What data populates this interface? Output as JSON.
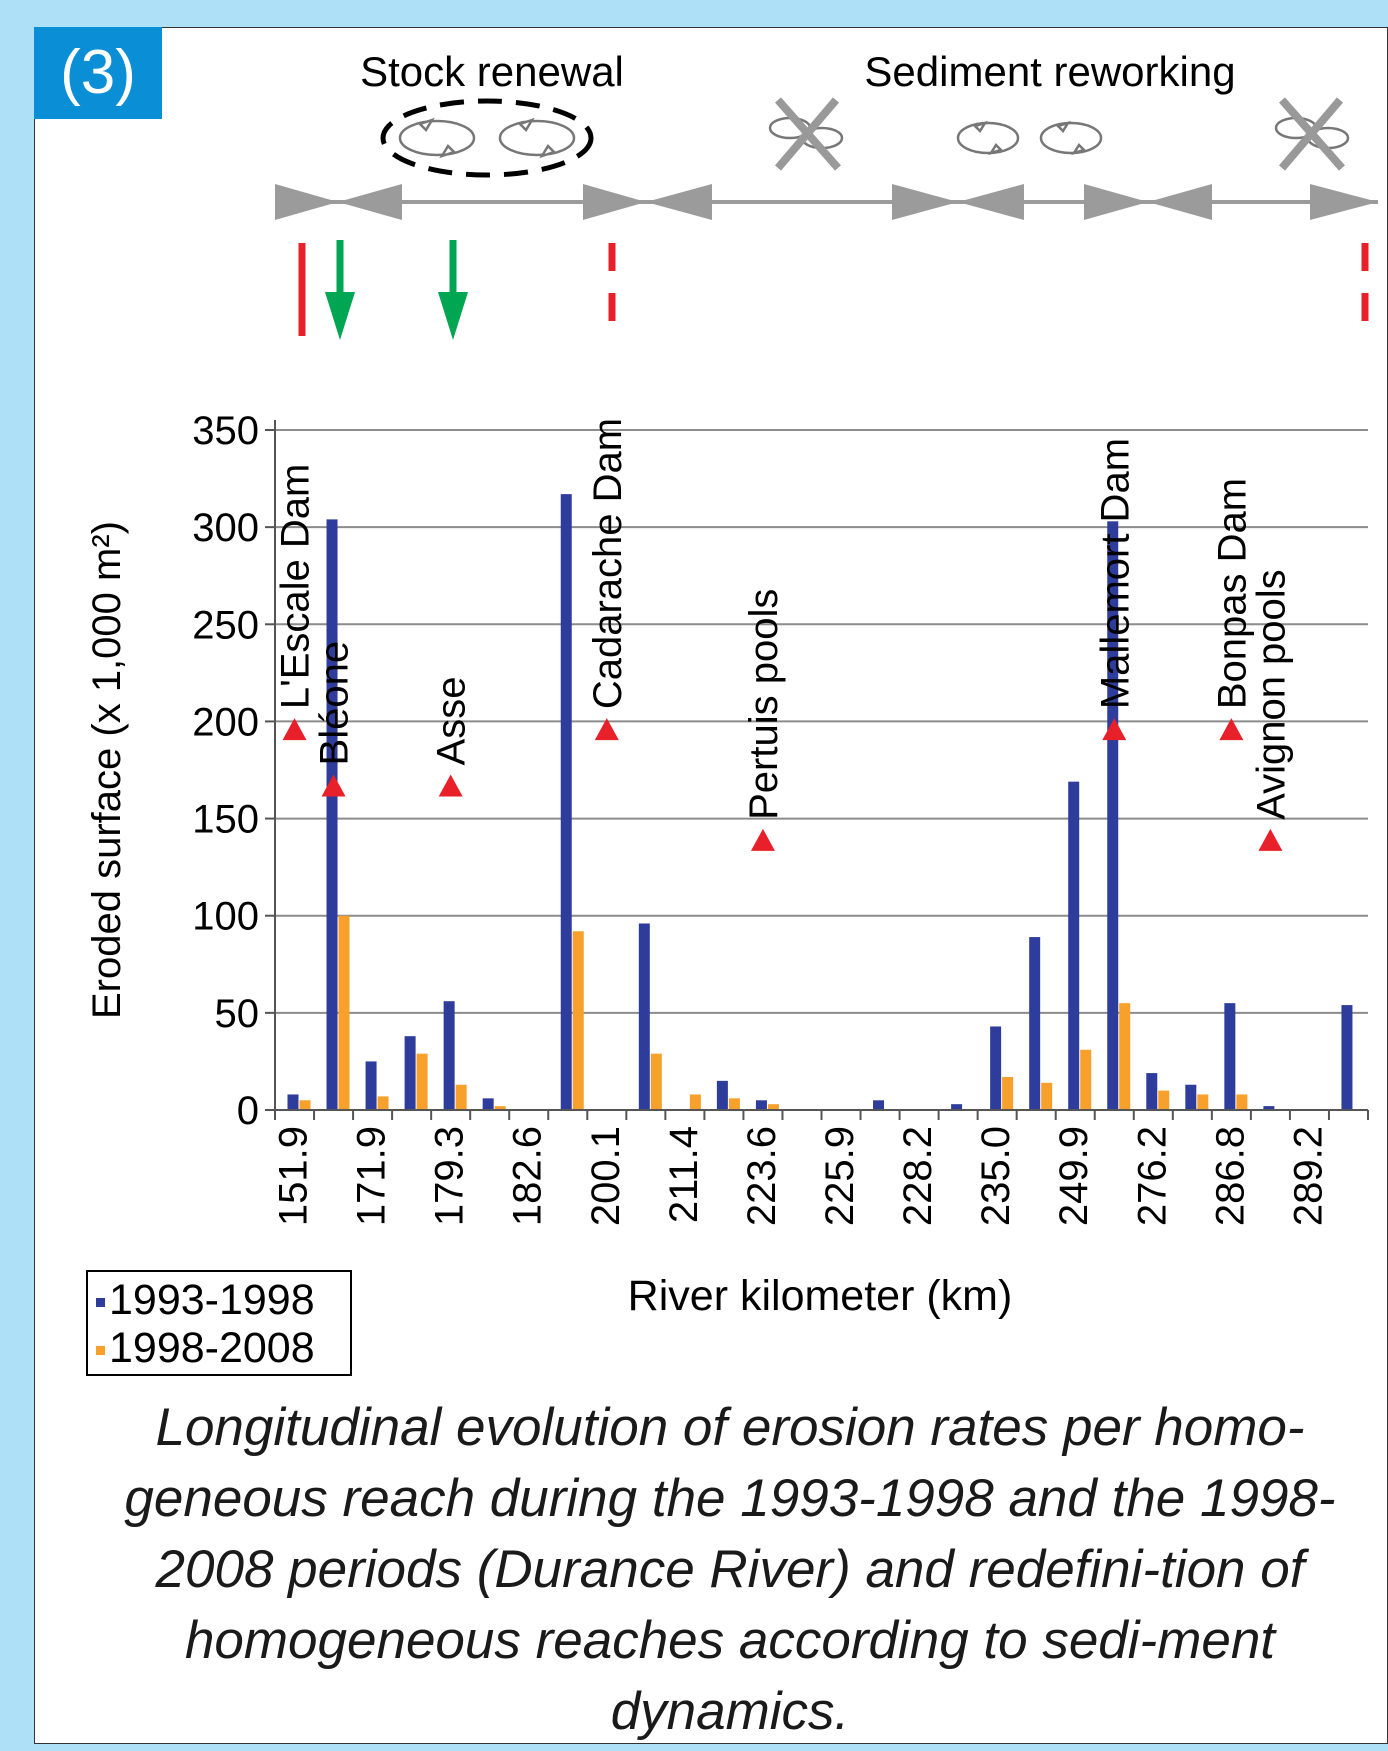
{
  "panel_label": "(3)",
  "colors": {
    "series_1": "#2e3d9c",
    "series_2": "#f7a02c",
    "marker": "#e8202a",
    "arrow_green": "#00a651",
    "gray": "#9b9b9b",
    "tag_bg": "#0a8fd6"
  },
  "header": {
    "stock_renewal": "Stock renewal",
    "sediment_reworking": "Sediment reworking"
  },
  "chart_data": {
    "type": "bar",
    "ylabel": "Eroded surface (x 1,000 m²)",
    "xlabel": "River kilometer (km)",
    "ylim": [
      0,
      350
    ],
    "yticks": [
      0,
      50,
      100,
      150,
      200,
      250,
      300,
      350
    ],
    "grid": true,
    "legend_position": "bottom-left",
    "tick_labels": [
      "151.9",
      "171.9",
      "179.3",
      "182.6",
      "200.1",
      "211.4",
      "223.6",
      "225.9",
      "228.2",
      "235.0",
      "249.9",
      "276.2",
      "286.8",
      "289.2"
    ],
    "series": [
      {
        "name": "1993-1998",
        "values": [
          8,
          304,
          25,
          38,
          56,
          6,
          0,
          317,
          0,
          96,
          0,
          15,
          5,
          0,
          0,
          5,
          0,
          3,
          43,
          89,
          169,
          303,
          19,
          13,
          55,
          2,
          0,
          54
        ]
      },
      {
        "name": "1998-2008",
        "values": [
          5,
          100,
          7,
          29,
          13,
          2,
          0,
          92,
          0,
          29,
          8,
          6,
          3,
          0,
          0,
          0,
          0,
          0,
          17,
          14,
          31,
          55,
          10,
          8,
          8,
          0,
          0,
          0
        ]
      }
    ],
    "annotations": [
      {
        "label": "L'Escale Dam",
        "bar_index": 0,
        "y": 195
      },
      {
        "label": "Bléone",
        "bar_index": 1,
        "y": 166
      },
      {
        "label": "Asse",
        "bar_index": 4,
        "y": 166
      },
      {
        "label": "Cadarache Dam",
        "bar_index": 8,
        "y": 195
      },
      {
        "label": "Pertuis pools",
        "bar_index": 12,
        "y": 138
      },
      {
        "label": "Mallemort Dam",
        "bar_index": 21,
        "y": 195
      },
      {
        "label": "Bonpas Dam",
        "bar_index": 24,
        "y": 195
      },
      {
        "label": "Avignon pools",
        "bar_index": 25,
        "y": 138
      }
    ]
  },
  "caption": "Longitudinal evolution of erosion rates per homo-geneous reach during the 1993-1998 and the 1998-2008 periods (Durance River) and redefini-tion of homogeneous reaches according to sedi-ment dynamics."
}
